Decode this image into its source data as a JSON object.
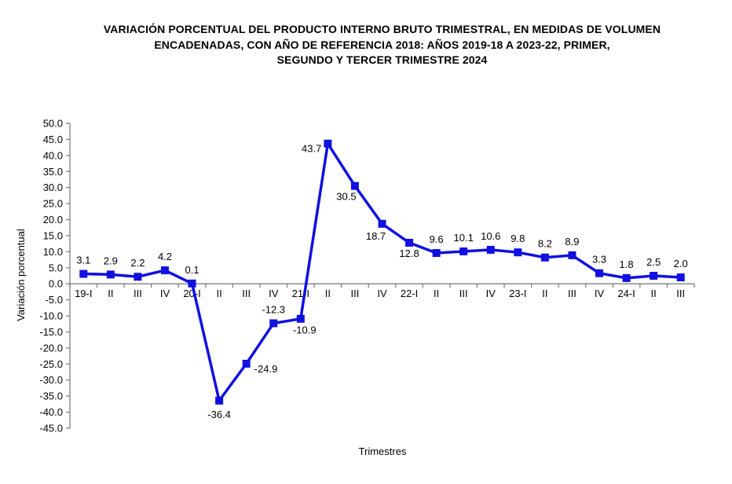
{
  "header": {
    "title_lines": [
      "VARIACIÓN PORCENTUAL DEL PRODUCTO INTERNO BRUTO TRIMESTRAL, EN MEDIDAS DE VOLUMEN",
      "ENCADENADAS, CON AÑO DE REFERENCIA 2018: AÑOS 2019-18 A 2023-22, PRIMER,",
      "SEGUNDO Y TERCER TRIMESTRE 2024"
    ]
  },
  "chart_data": {
    "type": "line",
    "title": "VARIACIÓN PORCENTUAL DEL PRODUCTO INTERNO BRUTO TRIMESTRAL, EN MEDIDAS DE VOLUMEN ENCADENADAS, CON AÑO DE REFERENCIA 2018: AÑOS 2019-18 A 2023-22, PRIMER, SEGUNDO Y TERCER TRIMESTRE 2024",
    "xlabel": "Trimestres",
    "ylabel": "Variación porcentual",
    "categories": [
      "19-I",
      "II",
      "III",
      "IV",
      "20-I",
      "II",
      "III",
      "IV",
      "21-I",
      "II",
      "III",
      "IV",
      "22-I",
      "II",
      "III",
      "IV",
      "23-I",
      "II",
      "III",
      "IV",
      "24-I",
      "II",
      "III"
    ],
    "values": [
      3.1,
      2.9,
      2.2,
      4.2,
      0.1,
      -36.4,
      -24.9,
      -12.3,
      -10.9,
      43.7,
      30.5,
      18.7,
      12.8,
      9.6,
      10.1,
      10.6,
      9.8,
      8.2,
      8.9,
      3.3,
      1.8,
      2.5,
      2.0
    ],
    "data_labels": [
      "3.1",
      "2.9",
      "2.2",
      "4.2",
      "0.1",
      "-36.4",
      "-24.9",
      "-12.3",
      "-10.9",
      "43.7",
      "30.5",
      "18.7",
      "12.8",
      "9.6",
      "10.1",
      "10.6",
      "9.8",
      "8.2",
      "8.9",
      "3.3",
      "1.8",
      "2.5",
      "2.0"
    ],
    "ylim": [
      -45,
      50
    ],
    "ytick_step": 5,
    "ytick_labels": [
      "50.0",
      "45.0",
      "40.0",
      "35.0",
      "30.0",
      "25.0",
      "20.0",
      "15.0",
      "10.0",
      "5.0",
      "0.0",
      "-5.0",
      "-10.0",
      "-15.0",
      "-20.0",
      "-25.0",
      "-30.0",
      "-35.0",
      "-40.0",
      "-45.0"
    ],
    "grid": false,
    "legend": "none",
    "marker": "square",
    "series_color": "#1010e0",
    "axis_color": "#7f7f7f",
    "text_color": "#000000"
  }
}
